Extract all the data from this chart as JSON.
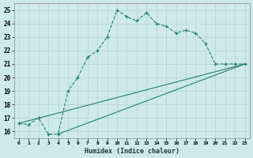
{
  "line1_x": [
    0,
    1,
    2,
    3,
    4,
    5,
    6,
    7,
    8,
    9,
    10,
    11,
    12,
    13,
    14,
    15,
    16,
    17,
    18,
    19,
    20,
    21,
    22,
    23
  ],
  "line1_y": [
    16.6,
    16.5,
    17.0,
    15.8,
    15.8,
    19.0,
    20.0,
    21.5,
    22.0,
    23.0,
    25.0,
    24.5,
    24.2,
    24.8,
    24.0,
    23.8,
    23.3,
    23.5,
    23.3,
    22.5,
    21.0,
    21.0,
    21.0,
    21.0
  ],
  "line2_x": [
    0,
    23
  ],
  "line2_y": [
    16.6,
    21.0
  ],
  "line3_x": [
    4,
    23
  ],
  "line3_y": [
    15.8,
    21.0
  ],
  "line_color": "#2a7d6e",
  "bg_color": "#ceeae8",
  "grid_color": "#b0d4d0",
  "xlabel": "Humidex (Indice chaleur)",
  "xlim": [
    -0.5,
    23.5
  ],
  "ylim": [
    15.5,
    25.5
  ],
  "yticks": [
    16,
    17,
    18,
    19,
    20,
    21,
    22,
    23,
    24,
    25
  ],
  "xticks": [
    0,
    1,
    2,
    3,
    4,
    5,
    6,
    7,
    8,
    9,
    10,
    11,
    12,
    13,
    14,
    15,
    16,
    17,
    18,
    19,
    20,
    21,
    22,
    23
  ],
  "xtick_labels": [
    "0",
    "1",
    "2",
    "3",
    "4",
    "5",
    "6",
    "7",
    "8",
    "9",
    "10",
    "11",
    "12",
    "13",
    "14",
    "15",
    "16",
    "17",
    "18",
    "19",
    "20",
    "21",
    "22",
    "23"
  ]
}
